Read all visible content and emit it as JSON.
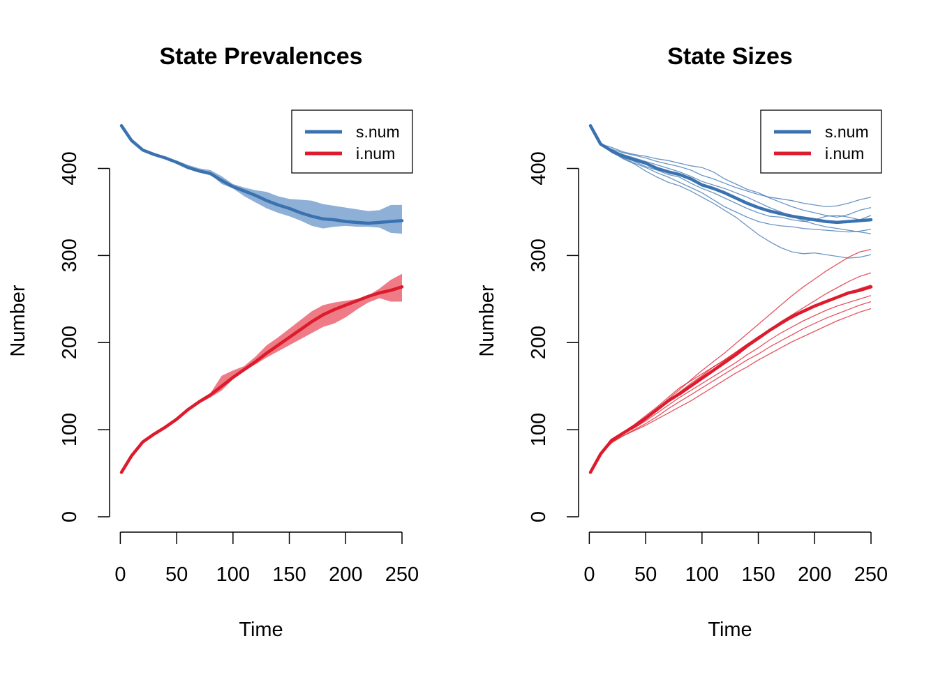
{
  "colors": {
    "s": "#3a72b0",
    "i": "#dc1b2c",
    "s_band": "#8eb0d6",
    "i_band": "#ef7b86"
  },
  "chart_data": [
    {
      "type": "line",
      "title": "State Prevalences",
      "xlabel": "Time",
      "ylabel": "Number",
      "xlim": [
        1,
        250
      ],
      "ylim": [
        0,
        450
      ],
      "xticks": [
        0,
        50,
        100,
        150,
        200,
        250
      ],
      "yticks": [
        0,
        100,
        200,
        300,
        400
      ],
      "legend": {
        "position": "top-right",
        "entries": [
          "s.num",
          "i.num"
        ]
      },
      "x": [
        1,
        10,
        20,
        30,
        40,
        50,
        60,
        70,
        80,
        90,
        100,
        110,
        120,
        130,
        140,
        150,
        160,
        170,
        180,
        190,
        200,
        210,
        220,
        230,
        240,
        250
      ],
      "series": [
        {
          "name": "s.num",
          "values": [
            449,
            432,
            421,
            416,
            412,
            407,
            401,
            397,
            394,
            386,
            379,
            374,
            369,
            363,
            358,
            354,
            349,
            345,
            342,
            341,
            339,
            338,
            337,
            338,
            339,
            340
          ],
          "band_lower": [
            449,
            432,
            421,
            416,
            411,
            405,
            400,
            396,
            393,
            382,
            377,
            368,
            361,
            354,
            349,
            345,
            340,
            334,
            331,
            333,
            334,
            333,
            333,
            332,
            326,
            325
          ],
          "band_upper": [
            449,
            432,
            421,
            417,
            413,
            409,
            404,
            400,
            398,
            391,
            382,
            378,
            375,
            373,
            368,
            365,
            364,
            363,
            359,
            357,
            355,
            353,
            351,
            352,
            358,
            358
          ]
        },
        {
          "name": "i.num",
          "values": [
            51,
            70,
            86,
            95,
            103,
            112,
            123,
            132,
            140,
            150,
            160,
            169,
            178,
            188,
            197,
            206,
            215,
            224,
            232,
            238,
            243,
            248,
            253,
            257,
            260,
            264
          ],
          "band_lower": [
            51,
            70,
            86,
            95,
            102,
            111,
            122,
            130,
            137,
            145,
            158,
            167,
            175,
            183,
            190,
            197,
            204,
            211,
            218,
            222,
            229,
            238,
            246,
            251,
            247,
            247
          ],
          "band_upper": [
            51,
            70,
            86,
            96,
            104,
            114,
            125,
            134,
            142,
            162,
            168,
            173,
            184,
            197,
            206,
            216,
            226,
            236,
            243,
            246,
            248,
            250,
            254,
            262,
            272,
            279
          ]
        }
      ]
    },
    {
      "type": "line",
      "title": "State Sizes",
      "xlabel": "Time",
      "ylabel": "Number",
      "xlim": [
        1,
        250
      ],
      "ylim": [
        0,
        450
      ],
      "xticks": [
        0,
        50,
        100,
        150,
        200,
        250
      ],
      "yticks": [
        0,
        100,
        200,
        300,
        400
      ],
      "legend": {
        "position": "top-right",
        "entries": [
          "s.num",
          "i.num"
        ]
      },
      "x": [
        1,
        10,
        20,
        30,
        40,
        50,
        60,
        70,
        80,
        90,
        100,
        110,
        120,
        130,
        140,
        150,
        160,
        170,
        180,
        190,
        200,
        210,
        220,
        230,
        240,
        250
      ],
      "series": [
        {
          "name": "s.num",
          "values": [
            449,
            428,
            420,
            414,
            410,
            406,
            400,
            396,
            393,
            388,
            381,
            377,
            372,
            366,
            360,
            355,
            351,
            348,
            345,
            343,
            341,
            339,
            338,
            339,
            340,
            341
          ],
          "runs": [
            [
              449,
              428,
              422,
              418,
              415,
              412,
              408,
              405,
              402,
              398,
              392,
              388,
              383,
              378,
              374,
              370,
              367,
              365,
              363,
              360,
              358,
              356,
              357,
              360,
              364,
              367
            ],
            [
              449,
              428,
              424,
              419,
              416,
              414,
              411,
              409,
              406,
              403,
              401,
              396,
              388,
              382,
              376,
              372,
              366,
              361,
              356,
              352,
              349,
              346,
              344,
              347,
              352,
              355
            ],
            [
              449,
              428,
              419,
              413,
              408,
              402,
              398,
              393,
              390,
              383,
              377,
              372,
              366,
              360,
              354,
              349,
              345,
              344,
              341,
              339,
              341,
              345,
              346,
              344,
              341,
              346
            ],
            [
              449,
              428,
              418,
              412,
              406,
              401,
              395,
              390,
              384,
              378,
              372,
              364,
              356,
              350,
              344,
              339,
              336,
              334,
              333,
              331,
              330,
              329,
              328,
              327,
              328,
              330
            ],
            [
              449,
              428,
              419,
              411,
              405,
              397,
              390,
              384,
              380,
              374,
              367,
              360,
              352,
              344,
              334,
              324,
              316,
              309,
              304,
              302,
              303,
              301,
              299,
              297,
              298,
              301
            ],
            [
              449,
              428,
              421,
              416,
              412,
              408,
              404,
              400,
              396,
              391,
              385,
              381,
              377,
              372,
              367,
              361,
              355,
              350,
              345,
              340,
              336,
              333,
              331,
              329,
              327,
              325
            ]
          ]
        },
        {
          "name": "i.num",
          "values": [
            51,
            72,
            88,
            96,
            104,
            113,
            123,
            133,
            141,
            150,
            159,
            168,
            177,
            186,
            196,
            205,
            214,
            222,
            230,
            236,
            242,
            247,
            252,
            257,
            260,
            264
          ],
          "runs": [
            [
              51,
              72,
              86,
              95,
              104,
              113,
              124,
              135,
              146,
              157,
              168,
              178,
              188,
              199,
              210,
              221,
              232,
              243,
              254,
              264,
              273,
              282,
              290,
              298,
              304,
              307
            ],
            [
              51,
              72,
              87,
              96,
              105,
              114,
              124,
              134,
              143,
              153,
              162,
              172,
              180,
              189,
              198,
              207,
              215,
              224,
              232,
              240,
              248,
              256,
              263,
              270,
              276,
              280
            ],
            [
              51,
              72,
              88,
              97,
              106,
              116,
              126,
              137,
              148,
              156,
              164,
              172,
              180,
              189,
              198,
              206,
              214,
              222,
              228,
              235,
              241,
              247,
              252,
              257,
              262,
              266
            ],
            [
              51,
              72,
              87,
              95,
              102,
              110,
              119,
              128,
              137,
              145,
              153,
              161,
              169,
              177,
              186,
              194,
              203,
              211,
              218,
              225,
              231,
              237,
              242,
              246,
              250,
              254
            ],
            [
              51,
              72,
              85,
              93,
              100,
              107,
              115,
              124,
              132,
              140,
              148,
              156,
              164,
              172,
              180,
              187,
              195,
              202,
              209,
              216,
              222,
              228,
              233,
              238,
              243,
              247
            ],
            [
              51,
              72,
              86,
              93,
              99,
              105,
              112,
              119,
              126,
              133,
              141,
              149,
              157,
              165,
              172,
              180,
              187,
              194,
              201,
              207,
              213,
              219,
              225,
              230,
              235,
              239
            ]
          ]
        }
      ]
    }
  ]
}
